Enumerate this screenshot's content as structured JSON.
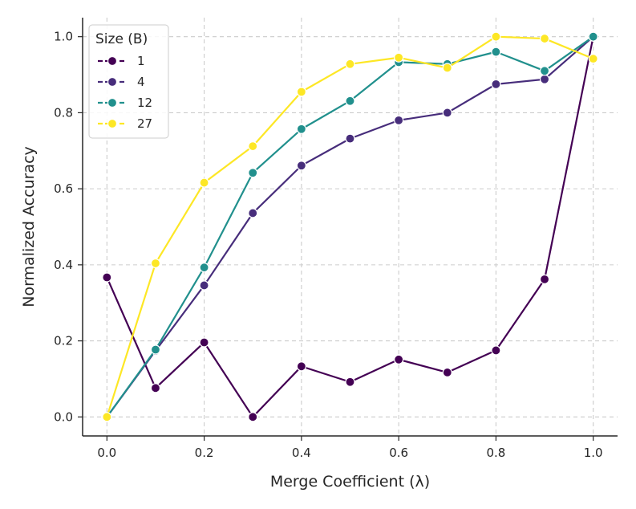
{
  "chart_data": {
    "type": "line",
    "xlabel": "Merge Coefficient (λ)",
    "ylabel": "Normalized Accuracy",
    "xlim": [
      -0.05,
      1.05
    ],
    "ylim": [
      -0.05,
      1.05
    ],
    "x_ticks": [
      "0.0",
      "0.2",
      "0.4",
      "0.6",
      "0.8",
      "1.0"
    ],
    "y_ticks": [
      "0.0",
      "0.2",
      "0.4",
      "0.6",
      "0.8",
      "1.0"
    ],
    "grid": true,
    "legend": {
      "title": "Size (B)",
      "position": "top-left"
    },
    "x": [
      0.0,
      0.1,
      0.2,
      0.3,
      0.4,
      0.5,
      0.6,
      0.7,
      0.8,
      0.9,
      1.0
    ],
    "series": [
      {
        "name": "1",
        "color": "#440154",
        "values": [
          0.367,
          0.076,
          0.196,
          0.0,
          0.133,
          0.092,
          0.151,
          0.117,
          0.175,
          0.362,
          1.0
        ]
      },
      {
        "name": "4",
        "color": "#472d7b",
        "values": [
          0.0,
          0.174,
          0.346,
          0.536,
          0.661,
          0.732,
          0.78,
          0.8,
          0.875,
          0.888,
          1.0
        ]
      },
      {
        "name": "12",
        "color": "#21908d",
        "values": [
          0.0,
          0.177,
          0.393,
          0.642,
          0.757,
          0.831,
          0.933,
          0.928,
          0.96,
          0.91,
          1.0
        ]
      },
      {
        "name": "27",
        "color": "#fde725",
        "values": [
          0.0,
          0.404,
          0.616,
          0.712,
          0.855,
          0.928,
          0.945,
          0.918,
          1.0,
          0.995,
          0.942
        ]
      }
    ]
  }
}
